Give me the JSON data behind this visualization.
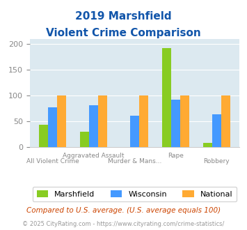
{
  "title_line1": "2019 Marshfield",
  "title_line2": "Violent Crime Comparison",
  "categories": [
    "All Violent Crime",
    "Aggravated Assault",
    "Murder & Mans...",
    "Rape",
    "Robbery"
  ],
  "series": {
    "Marshfield": [
      43,
      30,
      0,
      193,
      8
    ],
    "Wisconsin": [
      78,
      81,
      61,
      93,
      64
    ],
    "National": [
      100,
      100,
      100,
      100,
      100
    ]
  },
  "colors": {
    "Marshfield": "#88cc22",
    "Wisconsin": "#4499ff",
    "National": "#ffaa33"
  },
  "ylim": [
    0,
    210
  ],
  "yticks": [
    0,
    50,
    100,
    150,
    200
  ],
  "background_color": "#dce9f0",
  "title_color": "#1155aa",
  "tick_color": "#888888",
  "footnote1": "Compared to U.S. average. (U.S. average equals 100)",
  "footnote2": "© 2025 CityRating.com - https://www.cityrating.com/crime-statistics/",
  "footnote1_color": "#cc4400",
  "footnote2_color": "#999999"
}
